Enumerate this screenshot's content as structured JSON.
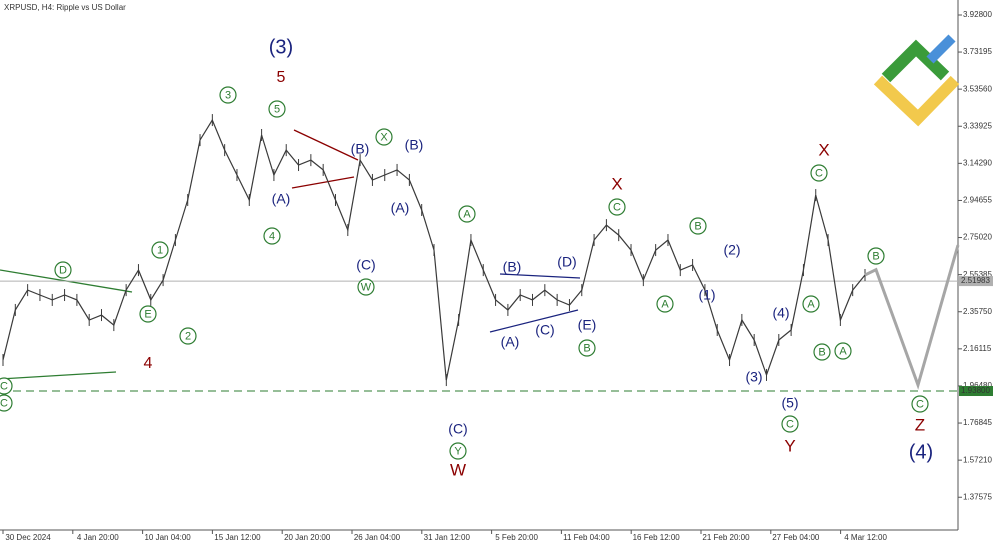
{
  "chart_data": {
    "type": "line",
    "title": "XRPUSD, H4:  Ripple vs US Dollar",
    "xtick_labels": [
      "30 Dec 2024",
      "4 Jan 20:00",
      "10 Jan 04:00",
      "15 Jan 12:00",
      "20 Jan 20:00",
      "26 Jan 04:00",
      "31 Jan 12:00",
      "5 Feb 20:00",
      "11 Feb 04:00",
      "16 Feb 12:00",
      "21 Feb 20:00",
      "27 Feb 04:00",
      "4 Mar 12:00"
    ],
    "series": [
      {
        "color": "#3a3a3a",
        "values": [
          2.102,
          2.367,
          2.472,
          2.446,
          2.42,
          2.446,
          2.42,
          2.314,
          2.34,
          2.287,
          2.472,
          2.578,
          2.42,
          2.525,
          2.737,
          2.949,
          3.266,
          3.372,
          3.213,
          3.081,
          2.949,
          3.293,
          3.081,
          3.213,
          3.134,
          3.16,
          3.108,
          2.949,
          2.79,
          3.16,
          3.055,
          3.081,
          3.108,
          3.055,
          2.896,
          2.684,
          1.996,
          2.314,
          2.737,
          2.578,
          2.42,
          2.367,
          2.446,
          2.42,
          2.472,
          2.42,
          2.393,
          2.472,
          2.737,
          2.816,
          2.763,
          2.684,
          2.525,
          2.684,
          2.737,
          2.578,
          2.605,
          2.472,
          2.261,
          2.102,
          2.314,
          2.208,
          2.023,
          2.208,
          2.261,
          2.578,
          2.975,
          2.737,
          2.314,
          2.472,
          2.552
        ]
      }
    ],
    "projection": {
      "color": "#a6a6a6",
      "values": [
        2.58,
        1.97,
        2.71
      ]
    },
    "ylim": [
      1.2024,
      4.0074
    ],
    "yticks": [
      {
        "value": 3.928,
        "label": "3.92800"
      },
      {
        "value": 3.73195,
        "label": "3.73195"
      },
      {
        "value": 3.5356,
        "label": "3.53560"
      },
      {
        "value": 3.33925,
        "label": "3.33925"
      },
      {
        "value": 3.1429,
        "label": "3.14290"
      },
      {
        "value": 2.94655,
        "label": "2.94655"
      },
      {
        "value": 2.7502,
        "label": "2.75020"
      },
      {
        "value": 2.55385,
        "label": "2.55385"
      },
      {
        "value": 2.3575,
        "label": "2.35750"
      },
      {
        "value": 2.16115,
        "label": "2.16115"
      },
      {
        "value": 1.9648,
        "label": "1.96480"
      },
      {
        "value": 1.76845,
        "label": "1.76845"
      },
      {
        "value": 1.5721,
        "label": "1.57210"
      },
      {
        "value": 1.37575,
        "label": "1.37575"
      }
    ],
    "price_line": {
      "value": 2.51983,
      "label": "2.51983",
      "color": "#b0b0b0"
    },
    "support_line": {
      "value": 1.938,
      "label": "1.93800",
      "color": "#2e7d32"
    },
    "annotations": [
      {
        "text": "(3)",
        "color": "#1a237e",
        "circled": false
      },
      {
        "text": "5",
        "color": "#8b0000",
        "circled": false
      },
      {
        "text": "3",
        "color": "#2e7d32",
        "circled": true
      },
      {
        "text": "5",
        "color": "#2e7d32",
        "circled": true
      },
      {
        "text": "X",
        "color": "#2e7d32",
        "circled": true
      },
      {
        "text": "(B)",
        "color": "#1a237e",
        "circled": false
      },
      {
        "text": "(B)",
        "color": "#1a237e",
        "circled": false
      },
      {
        "text": "(A)",
        "color": "#1a237e",
        "circled": false
      },
      {
        "text": "4",
        "color": "#2e7d32",
        "circled": true
      },
      {
        "text": "(A)",
        "color": "#1a237e",
        "circled": false
      },
      {
        "text": "(C)",
        "color": "#1a237e",
        "circled": false
      },
      {
        "text": "W",
        "color": "#2e7d32",
        "circled": true
      },
      {
        "text": "1",
        "color": "#2e7d32",
        "circled": true
      },
      {
        "text": "2",
        "color": "#2e7d32",
        "circled": true
      },
      {
        "text": "D",
        "color": "#2e7d32",
        "circled": true
      },
      {
        "text": "E",
        "color": "#2e7d32",
        "circled": true
      },
      {
        "text": "4",
        "color": "#8b0000",
        "circled": false
      },
      {
        "text": "C",
        "color": "#2e7d32",
        "circled": true
      },
      {
        "text": "C",
        "color": "#2e7d32",
        "circled": true
      },
      {
        "text": "A",
        "color": "#2e7d32",
        "circled": true
      },
      {
        "text": "(C)",
        "color": "#1a237e",
        "circled": false
      },
      {
        "text": "Y",
        "color": "#2e7d32",
        "circled": true
      },
      {
        "text": "W",
        "color": "#8b0000",
        "circled": false
      },
      {
        "text": "(B)",
        "color": "#1a237e",
        "circled": false
      },
      {
        "text": "(D)",
        "color": "#1a237e",
        "circled": false
      },
      {
        "text": "(A)",
        "color": "#1a237e",
        "circled": false
      },
      {
        "text": "(C)",
        "color": "#1a237e",
        "circled": false
      },
      {
        "text": "(E)",
        "color": "#1a237e",
        "circled": false
      },
      {
        "text": "B",
        "color": "#2e7d32",
        "circled": true
      },
      {
        "text": "X",
        "color": "#8b0000",
        "circled": false
      },
      {
        "text": "C",
        "color": "#2e7d32",
        "circled": true
      },
      {
        "text": "B",
        "color": "#2e7d32",
        "circled": true
      },
      {
        "text": "(2)",
        "color": "#1a237e",
        "circled": false
      },
      {
        "text": "A",
        "color": "#2e7d32",
        "circled": true
      },
      {
        "text": "(1)",
        "color": "#1a237e",
        "circled": false
      },
      {
        "text": "(4)",
        "color": "#1a237e",
        "circled": false
      },
      {
        "text": "A",
        "color": "#2e7d32",
        "circled": true
      },
      {
        "text": "(3)",
        "color": "#1a237e",
        "circled": false
      },
      {
        "text": "B",
        "color": "#2e7d32",
        "circled": true
      },
      {
        "text": "A",
        "color": "#2e7d32",
        "circled": true
      },
      {
        "text": "(5)",
        "color": "#1a237e",
        "circled": false
      },
      {
        "text": "C",
        "color": "#2e7d32",
        "circled": true
      },
      {
        "text": "Y",
        "color": "#8b0000",
        "circled": false
      },
      {
        "text": "X",
        "color": "#8b0000",
        "circled": false
      },
      {
        "text": "C",
        "color": "#2e7d32",
        "circled": true
      },
      {
        "text": "B",
        "color": "#2e7d32",
        "circled": true
      },
      {
        "text": "C",
        "color": "#2e7d32",
        "circled": true
      },
      {
        "text": "Z",
        "color": "#8b0000",
        "circled": false
      },
      {
        "text": "(4)",
        "color": "#1a237e",
        "circled": false
      }
    ]
  }
}
